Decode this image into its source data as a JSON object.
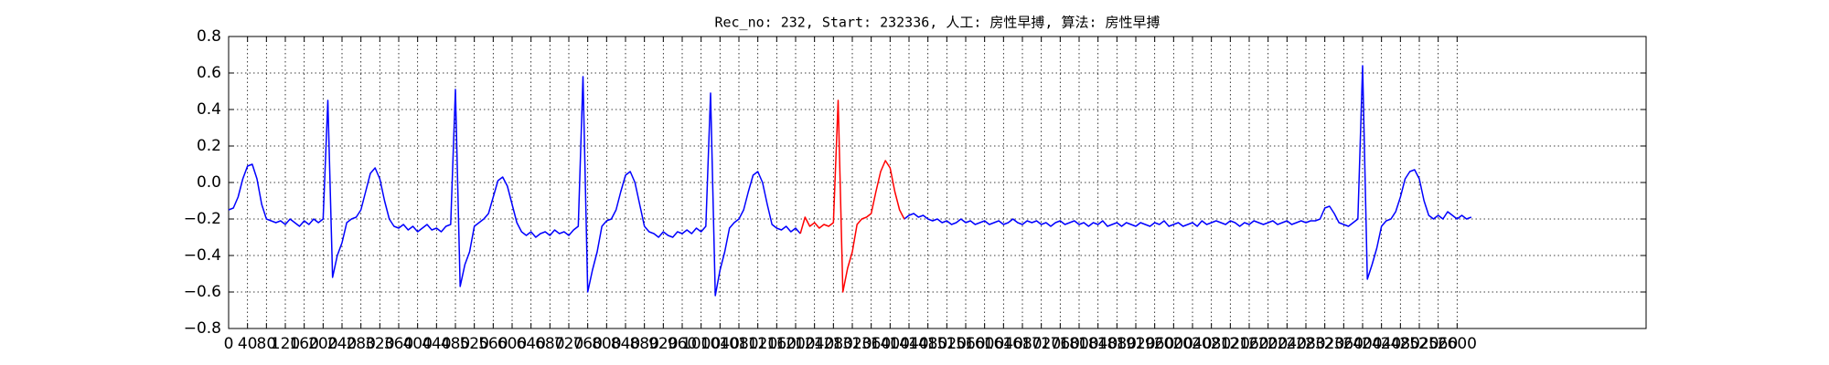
{
  "chart_data": {
    "type": "line",
    "title": "Rec_no: 232, Start: 232336, 人工: 房性早搏, 算法: 房性早搏",
    "xlim": [
      0,
      3000
    ],
    "ylim": [
      -0.8,
      0.8
    ],
    "yticks": [
      {
        "value": -0.8,
        "label": "−0.8"
      },
      {
        "value": -0.6,
        "label": "−0.6"
      },
      {
        "value": -0.4,
        "label": "−0.4"
      },
      {
        "value": -0.2,
        "label": "−0.2"
      },
      {
        "value": 0,
        "label": "0.0"
      },
      0.2,
      0.4,
      0.6,
      0.8
    ],
    "xticks": [
      0,
      40,
      80,
      120,
      160,
      200,
      240,
      280,
      320,
      360,
      400,
      440,
      480,
      520,
      560,
      600,
      640,
      680,
      720,
      760,
      800,
      840,
      880,
      920,
      960,
      1000,
      1040,
      1080,
      1120,
      1160,
      1200,
      1240,
      1280,
      1320,
      1360,
      1400,
      1440,
      1480,
      1520,
      1560,
      1600,
      1640,
      1680,
      1720,
      1760,
      1800,
      1840,
      1880,
      1920,
      1960,
      2000,
      2040,
      2080,
      2120,
      2160,
      2200,
      2240,
      2280,
      2320,
      2360,
      2400,
      2440,
      2480,
      2520,
      2560,
      2600
    ],
    "grid": true,
    "x": [
      0,
      10,
      20,
      30,
      40,
      50,
      60,
      70,
      80,
      90,
      100,
      110,
      120,
      130,
      140,
      150,
      160,
      170,
      180,
      190,
      200,
      210,
      220,
      230,
      240,
      250,
      260,
      270,
      280,
      290,
      300,
      310,
      320,
      330,
      340,
      350,
      360,
      370,
      380,
      390,
      400,
      410,
      420,
      430,
      440,
      450,
      460,
      470,
      480,
      490,
      500,
      510,
      520,
      530,
      540,
      550,
      560,
      570,
      580,
      590,
      600,
      610,
      620,
      630,
      640,
      650,
      660,
      670,
      680,
      690,
      700,
      710,
      720,
      730,
      740,
      750,
      760,
      770,
      780,
      790,
      800,
      810,
      820,
      830,
      840,
      850,
      860,
      870,
      880,
      890,
      900,
      910,
      920,
      930,
      940,
      950,
      960,
      970,
      980,
      990,
      1000,
      1010,
      1020,
      1030,
      1040,
      1050,
      1060,
      1070,
      1080,
      1090,
      1100,
      1110,
      1120,
      1130,
      1140,
      1150,
      1160,
      1170,
      1180,
      1190,
      1200,
      1210,
      1220,
      1230,
      1240,
      1250,
      1260,
      1270,
      1280,
      1290,
      1300,
      1310,
      1320,
      1330,
      1340,
      1350,
      1360,
      1370,
      1380,
      1390,
      1400,
      1410,
      1420,
      1430,
      1440,
      1450,
      1460,
      1470,
      1480,
      1490,
      1500,
      1510,
      1520,
      1530,
      1540,
      1550,
      1560,
      1570,
      1580,
      1590,
      1600,
      1610,
      1620,
      1630,
      1640,
      1650,
      1660,
      1670,
      1680,
      1690,
      1700,
      1710,
      1720,
      1730,
      1740,
      1750,
      1760,
      1770,
      1780,
      1790,
      1800,
      1810,
      1820,
      1830,
      1840,
      1850,
      1860,
      1870,
      1880,
      1890,
      1900,
      1910,
      1920,
      1930,
      1940,
      1950,
      1960,
      1970,
      1980,
      1990,
      2000,
      2010,
      2020,
      2030,
      2040,
      2050,
      2060,
      2070,
      2080,
      2090,
      2100,
      2110,
      2120,
      2130,
      2140,
      2150,
      2160,
      2170,
      2180,
      2190,
      2200,
      2210,
      2220,
      2230,
      2240,
      2250,
      2260,
      2270,
      2280,
      2290,
      2300,
      2310,
      2320,
      2330,
      2340,
      2350,
      2360,
      2370,
      2380,
      2390,
      2400,
      2410,
      2420,
      2430,
      2440,
      2450,
      2460,
      2470,
      2480,
      2490,
      2500,
      2510,
      2520,
      2530,
      2540,
      2550,
      2560,
      2570,
      2580,
      2590,
      2600,
      2610,
      2620,
      2630
    ],
    "series": [
      {
        "color": "#0000ff",
        "values": [
          -0.15,
          -0.14,
          -0.08,
          0.02,
          0.09,
          0.1,
          0.02,
          -0.12,
          -0.2,
          -0.21,
          -0.22,
          -0.21,
          -0.23,
          -0.2,
          -0.22,
          -0.24,
          -0.21,
          -0.23,
          -0.2,
          -0.22,
          -0.2,
          0.45,
          -0.52,
          -0.4,
          -0.33,
          -0.22,
          -0.2,
          -0.19,
          -0.15,
          -0.05,
          0.05,
          0.08,
          0.02,
          -0.1,
          -0.2,
          -0.24,
          -0.25,
          -0.23,
          -0.26,
          -0.24,
          -0.27,
          -0.25,
          -0.23,
          -0.26,
          -0.25,
          -0.27,
          -0.24,
          -0.23,
          0.51,
          -0.57,
          -0.45,
          -0.38,
          -0.24,
          -0.22,
          -0.2,
          -0.17,
          -0.08,
          0.01,
          0.03,
          -0.02,
          -0.12,
          -0.22,
          -0.27,
          -0.29,
          -0.27,
          -0.3,
          -0.28,
          -0.27,
          -0.29,
          -0.26,
          -0.28,
          -0.27,
          -0.29,
          -0.26,
          -0.24,
          0.58,
          -0.6,
          -0.48,
          -0.38,
          -0.24,
          -0.21,
          -0.2,
          -0.15,
          -0.05,
          0.04,
          0.06,
          0.0,
          -0.12,
          -0.24,
          -0.27,
          -0.28,
          -0.3,
          -0.27,
          -0.29,
          -0.3,
          -0.27,
          -0.28,
          -0.26,
          -0.28,
          -0.25,
          -0.27,
          -0.24,
          0.49,
          -0.62,
          -0.48,
          -0.38,
          -0.25,
          -0.22,
          -0.2,
          -0.15,
          -0.05,
          0.04,
          0.06,
          0.0,
          -0.12,
          -0.23,
          -0.25,
          -0.26,
          -0.24,
          -0.27,
          -0.25,
          -0.28,
          null,
          null,
          null,
          null,
          null,
          null,
          null,
          null,
          null,
          null,
          null,
          null,
          null,
          null,
          null,
          null,
          null,
          null,
          null,
          null,
          null,
          -0.2,
          -0.18,
          -0.17,
          -0.19,
          -0.18,
          -0.2,
          -0.21,
          -0.2,
          -0.22,
          -0.21,
          -0.23,
          -0.22,
          -0.2,
          -0.22,
          -0.21,
          -0.23,
          -0.22,
          -0.21,
          -0.23,
          -0.22,
          -0.21,
          -0.23,
          -0.22,
          -0.2,
          -0.22,
          -0.23,
          -0.21,
          -0.22,
          -0.21,
          -0.23,
          -0.22,
          -0.24,
          -0.22,
          -0.21,
          -0.23,
          -0.22,
          -0.21,
          -0.23,
          -0.22,
          -0.24,
          -0.22,
          -0.23,
          -0.21,
          -0.24,
          -0.23,
          -0.22,
          -0.24,
          -0.22,
          -0.23,
          -0.24,
          -0.22,
          -0.23,
          -0.24,
          -0.22,
          -0.23,
          -0.21,
          -0.24,
          -0.23,
          -0.22,
          -0.24,
          -0.23,
          -0.22,
          -0.24,
          -0.21,
          -0.23,
          -0.22,
          -0.21,
          -0.22,
          -0.23,
          -0.21,
          -0.22,
          -0.24,
          -0.22,
          -0.23,
          -0.21,
          -0.22,
          -0.23,
          -0.22,
          -0.21,
          -0.23,
          -0.22,
          -0.21,
          -0.23,
          -0.22,
          -0.21,
          -0.22,
          -0.21,
          -0.21,
          -0.2,
          -0.14,
          -0.13,
          -0.17,
          -0.22,
          -0.23,
          -0.24,
          -0.22,
          -0.2,
          0.64,
          -0.53,
          -0.45,
          -0.36,
          -0.24,
          -0.21,
          -0.2,
          -0.16,
          -0.08,
          0.02,
          0.06,
          0.07,
          0.02,
          -0.1,
          -0.18,
          -0.2,
          -0.18,
          -0.2,
          -0.16,
          -0.18,
          -0.2,
          -0.18,
          -0.2,
          -0.19
        ]
      },
      {
        "color": "#ff0000",
        "x": [
          1210,
          1220,
          1230,
          1240,
          1250,
          1260,
          1270,
          1280,
          1290,
          1300,
          1310,
          1320,
          1330,
          1340,
          1350,
          1360,
          1370,
          1380,
          1390,
          1400,
          1410,
          1420,
          1430
        ],
        "values": [
          -0.28,
          -0.19,
          -0.24,
          -0.22,
          -0.25,
          -0.23,
          -0.24,
          -0.22,
          0.45,
          -0.6,
          -0.47,
          -0.38,
          -0.23,
          -0.2,
          -0.19,
          -0.17,
          -0.05,
          0.06,
          0.12,
          0.08,
          -0.05,
          -0.15,
          -0.2
        ]
      }
    ]
  }
}
